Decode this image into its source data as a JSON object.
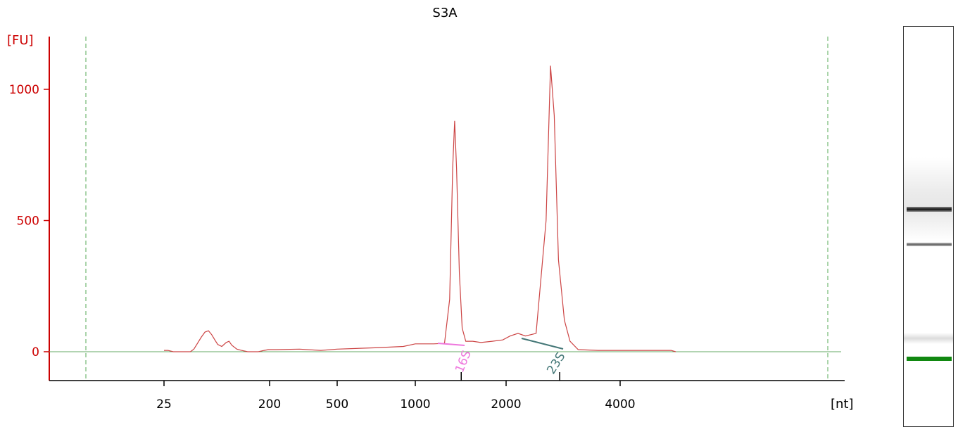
{
  "colors": {
    "axis": "#cc0000",
    "trace": "#cc4444",
    "baseline": "#66aa66",
    "marker_16s": "#ee77dd",
    "marker_23s": "#447777",
    "gel_marker": "#118811"
  },
  "chart_data": {
    "type": "line",
    "title": "S3A",
    "ylabel": "[FU]",
    "xlabel": "[nt]",
    "ylim": [
      -110,
      1200
    ],
    "y_ticks": [
      0,
      500,
      1000
    ],
    "y_tick_labels": [
      "0",
      "500",
      "1000"
    ],
    "x_scale": "log",
    "x_ticks": [
      25,
      200,
      500,
      1000,
      2000,
      4000
    ],
    "x_tick_labels": [
      "25",
      "200",
      "500",
      "1000",
      "2000",
      "4000"
    ],
    "grid": false,
    "series": [
      {
        "values": [
          [
            25,
            5
          ],
          [
            27,
            5
          ],
          [
            30,
            0
          ],
          [
            42,
            0
          ],
          [
            45,
            10
          ],
          [
            48,
            30
          ],
          [
            52,
            55
          ],
          [
            56,
            75
          ],
          [
            60,
            80
          ],
          [
            64,
            65
          ],
          [
            68,
            45
          ],
          [
            72,
            28
          ],
          [
            78,
            20
          ],
          [
            85,
            35
          ],
          [
            90,
            40
          ],
          [
            95,
            25
          ],
          [
            105,
            10
          ],
          [
            115,
            5
          ],
          [
            130,
            0
          ],
          [
            160,
            0
          ],
          [
            180,
            5
          ],
          [
            195,
            8
          ],
          [
            220,
            8
          ],
          [
            300,
            10
          ],
          [
            400,
            5
          ],
          [
            500,
            10
          ],
          [
            700,
            15
          ],
          [
            900,
            20
          ],
          [
            1000,
            30
          ],
          [
            1150,
            30
          ],
          [
            1250,
            32
          ],
          [
            1300,
            200
          ],
          [
            1330,
            700
          ],
          [
            1350,
            880
          ],
          [
            1370,
            700
          ],
          [
            1400,
            300
          ],
          [
            1430,
            90
          ],
          [
            1470,
            40
          ],
          [
            1550,
            40
          ],
          [
            1650,
            35
          ],
          [
            1800,
            40
          ],
          [
            1950,
            45
          ],
          [
            2050,
            60
          ],
          [
            2150,
            70
          ],
          [
            2250,
            60
          ],
          [
            2400,
            70
          ],
          [
            2550,
            500
          ],
          [
            2620,
            1090
          ],
          [
            2680,
            900
          ],
          [
            2750,
            350
          ],
          [
            2850,
            120
          ],
          [
            2950,
            40
          ],
          [
            3100,
            8
          ],
          [
            3500,
            5
          ],
          [
            4500,
            5
          ],
          [
            5800,
            5
          ],
          [
            6000,
            0
          ]
        ]
      }
    ],
    "markers": [
      {
        "label": "16S",
        "x": 1420
      },
      {
        "label": "23S",
        "x": 2770
      }
    ]
  }
}
